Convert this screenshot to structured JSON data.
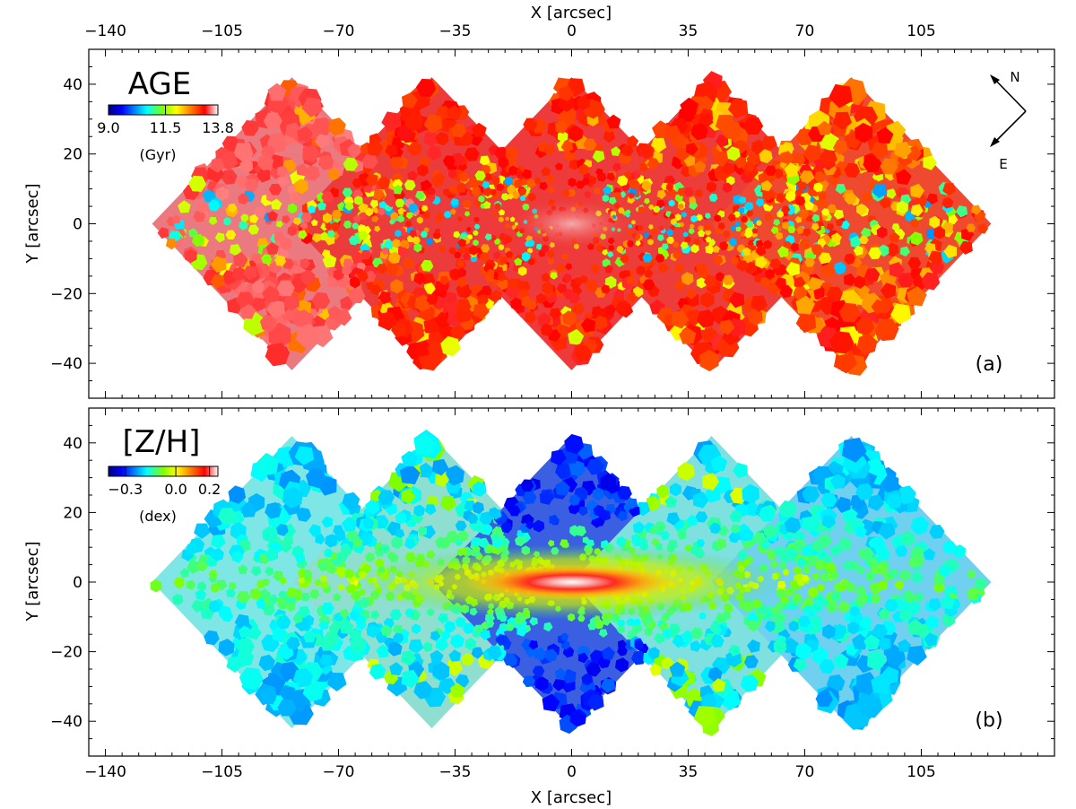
{
  "chart_data": [
    {
      "id": "a",
      "type": "heatmap",
      "title": "AGE",
      "panel_label": "(a)",
      "xlabel": "X [arcsec]",
      "ylabel": "Y [arcsec]",
      "xlim": [
        -145,
        145
      ],
      "ylim": [
        -50,
        50
      ],
      "xticks": [
        -140,
        -105,
        -70,
        -35,
        0,
        35,
        70,
        105
      ],
      "xtick_labels": [
        "−140",
        "−105",
        "−70",
        "−35",
        "0",
        "35",
        "70",
        "105"
      ],
      "yticks": [
        40,
        20,
        0,
        -20,
        -40
      ],
      "ytick_labels": [
        "40",
        "20",
        "0",
        "−20",
        "−40"
      ],
      "tile_centers_x": [
        -84,
        -42,
        0,
        42,
        84
      ],
      "tile_center_y": 0,
      "tile_half_diagonal": 42,
      "colorbar": {
        "unit": "(Gyr)",
        "range": [
          9.0,
          13.8
        ],
        "tick_values": [
          9.0,
          11.5,
          13.8
        ],
        "tick_labels": [
          "9.0",
          "11.5",
          "13.8"
        ]
      },
      "compass": {
        "north": "N",
        "east": "E"
      }
    },
    {
      "id": "b",
      "type": "heatmap",
      "title": "[Z/H]",
      "panel_label": "(b)",
      "xlabel": "X [arcsec]",
      "ylabel": "Y [arcsec]",
      "xlim": [
        -145,
        145
      ],
      "ylim": [
        -50,
        50
      ],
      "xticks": [
        -140,
        -105,
        -70,
        -35,
        0,
        35,
        70,
        105
      ],
      "xtick_labels": [
        "−140",
        "−105",
        "−70",
        "−35",
        "0",
        "35",
        "70",
        "105"
      ],
      "yticks": [
        40,
        20,
        0,
        -20,
        -40
      ],
      "ytick_labels": [
        "40",
        "20",
        "0",
        "−20",
        "−40"
      ],
      "tile_centers_x": [
        -84,
        -42,
        0,
        42,
        84
      ],
      "tile_center_y": 0,
      "tile_half_diagonal": 42,
      "colorbar": {
        "unit": "(dex)",
        "range": [
          -0.4,
          0.25
        ],
        "tick_values": [
          -0.3,
          0.0,
          0.2
        ],
        "tick_labels": [
          "−0.3",
          "0.0",
          "0.2"
        ]
      }
    }
  ],
  "colors": {
    "age_tile_base": [
      "#ea7a80",
      "#ec3b3b",
      "#ee3a3a",
      "#ec3d3a",
      "#ef4a30"
    ],
    "zh_tile_base": [
      "#7fe6e6",
      "#8fdfd0",
      "#3a5fe0",
      "#7fe0e0",
      "#6fd0f0"
    ],
    "jet_stops": [
      "#00007f",
      "#0000ff",
      "#00ffff",
      "#7fff00",
      "#ffff00",
      "#ff7f00",
      "#ff0000",
      "#ffffff"
    ]
  }
}
